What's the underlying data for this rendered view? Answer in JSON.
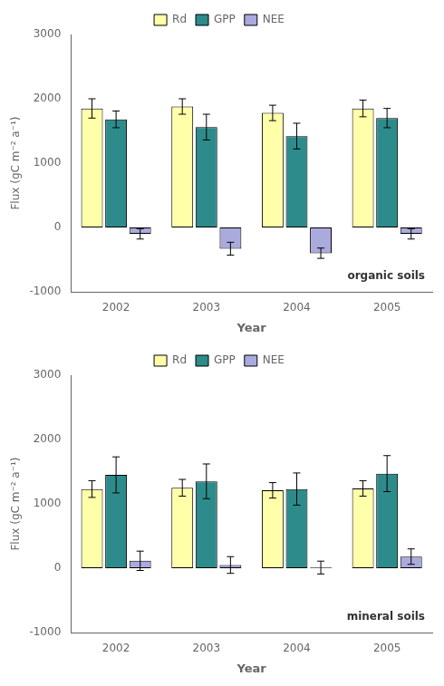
{
  "chart_data": [
    {
      "type": "bar",
      "categories": [
        "2002",
        "2003",
        "2004",
        "2005"
      ],
      "series": [
        {
          "name": "Rd",
          "color": "#FFFFAA",
          "values": [
            1850,
            1880,
            1780,
            1850
          ],
          "errors": [
            150,
            120,
            120,
            130
          ]
        },
        {
          "name": "GPP",
          "color": "#2E8B8B",
          "values": [
            1680,
            1560,
            1420,
            1700
          ],
          "errors": [
            130,
            200,
            200,
            150
          ]
        },
        {
          "name": "NEE",
          "color": "#AAAADD",
          "values": [
            -100,
            -330,
            -400,
            -100
          ],
          "errors": [
            80,
            100,
            80,
            80
          ]
        }
      ],
      "xlabel": "Year",
      "ylabel": "Flux (gC m⁻² a⁻¹)",
      "annotations": [
        "organic soils"
      ],
      "ylim": [
        -1000,
        3000
      ],
      "yticks": [
        -1000,
        0,
        1000,
        2000,
        3000
      ],
      "grid": false,
      "legend": "top"
    },
    {
      "type": "bar",
      "categories": [
        "2002",
        "2003",
        "2004",
        "2005"
      ],
      "series": [
        {
          "name": "Rd",
          "color": "#FFFFAA",
          "values": [
            1230,
            1250,
            1210,
            1240
          ],
          "errors": [
            130,
            130,
            120,
            120
          ]
        },
        {
          "name": "GPP",
          "color": "#2E8B8B",
          "values": [
            1450,
            1350,
            1230,
            1470
          ],
          "errors": [
            280,
            270,
            250,
            280
          ]
        },
        {
          "name": "NEE",
          "color": "#AAAADD",
          "values": [
            115,
            50,
            10,
            180
          ],
          "errors": [
            150,
            130,
            100,
            120
          ]
        }
      ],
      "xlabel": "Year",
      "ylabel": "Flux (gC m⁻² a⁻¹)",
      "annotations": [
        "mineral soils"
      ],
      "ylim": [
        -1000,
        3000
      ],
      "yticks": [
        -1000,
        0,
        1000,
        2000,
        3000
      ],
      "grid": false,
      "legend": "top"
    }
  ]
}
